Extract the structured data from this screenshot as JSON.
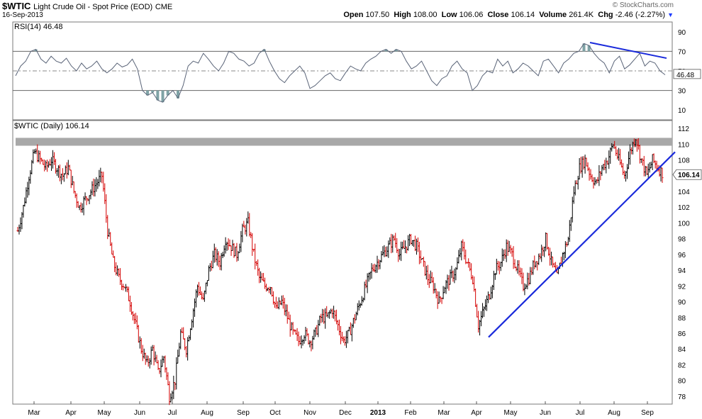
{
  "header": {
    "symbol": "$WTIC",
    "description": "Light Crude Oil - Spot Price (EOD)",
    "exchange": "CME",
    "date": "16-Sep-2013",
    "open_label": "Open",
    "open": "107.50",
    "high_label": "High",
    "high": "108.00",
    "low_label": "Low",
    "low": "106.06",
    "close_label": "Close",
    "close": "106.14",
    "volume_label": "Volume",
    "volume": "261.4K",
    "chg_label": "Chg",
    "chg": "-2.46 (-2.27%)",
    "brand": "© StockCharts.com"
  },
  "chart_data": [
    {
      "type": "line",
      "title": "RSI(14) 46.48",
      "indicator": "RSI(14)",
      "last_value": "46.48",
      "ylim": [
        0,
        100
      ],
      "yticks": [
        "90",
        "70",
        "50",
        "30",
        "10"
      ],
      "reference_lines": [
        70,
        50,
        30
      ],
      "grid": false,
      "series": [
        {
          "values": [
            45,
            55,
            60,
            70,
            72,
            62,
            58,
            65,
            60,
            58,
            63,
            55,
            50,
            58,
            52,
            55,
            60,
            52,
            48,
            52,
            58,
            54,
            56,
            62,
            52,
            30,
            25,
            28,
            20,
            18,
            25,
            30,
            22,
            35,
            55,
            60,
            58,
            68,
            62,
            55,
            50,
            58,
            70,
            68,
            62,
            60,
            55,
            58,
            68,
            72,
            60,
            50,
            42,
            38,
            45,
            50,
            55,
            48,
            32,
            35,
            40,
            45,
            48,
            42,
            40,
            48,
            55,
            52,
            50,
            58,
            62,
            65,
            70,
            72,
            68,
            72,
            70,
            60,
            52,
            55,
            60,
            50,
            40,
            35,
            42,
            45,
            55,
            60,
            52,
            48,
            30,
            35,
            45,
            50,
            48,
            62,
            55,
            60,
            48,
            52,
            58,
            55,
            50,
            45,
            60,
            62,
            55,
            48,
            58,
            62,
            68,
            70,
            78,
            76,
            68,
            62,
            58,
            48,
            60,
            65,
            52,
            56,
            62,
            68,
            55,
            60,
            58,
            50,
            46
          ]
        }
      ],
      "trendline_label": "divergence line",
      "trendline": {
        "from": {
          "x": "Jul 2013",
          "y": 79
        },
        "to": {
          "x": "Sep 2013",
          "y": 63
        }
      }
    },
    {
      "type": "line",
      "title": "$WTIC (Daily) 106.14",
      "series_name": "$WTIC (Daily)",
      "last_value": "106.14",
      "ylim": [
        77,
        113
      ],
      "yticks": [
        "112",
        "110",
        "108",
        "106",
        "104",
        "102",
        "100",
        "98",
        "96",
        "94",
        "92",
        "90",
        "88",
        "86",
        "84",
        "82",
        "80",
        "78"
      ],
      "xticks": [
        "Mar",
        "Apr",
        "May",
        "Jun",
        "Jul",
        "Aug",
        "Sep",
        "Oct",
        "Nov",
        "Dec",
        "2013",
        "Feb",
        "Mar",
        "Apr",
        "May",
        "Jun",
        "Jul",
        "Aug",
        "Sep"
      ],
      "resistance_band": [
        109.8,
        110.8
      ],
      "grid": false,
      "series": [
        {
          "values": [
            99,
            102,
            106,
            109,
            108,
            107,
            108,
            107,
            106,
            107,
            104,
            102,
            103,
            104,
            105,
            106,
            99,
            95,
            93,
            92,
            90,
            87,
            84,
            82,
            84,
            81,
            83,
            78,
            80,
            86,
            84,
            88,
            92,
            90,
            94,
            96,
            95,
            98,
            97,
            96,
            99,
            100,
            96,
            93,
            92,
            92,
            89,
            90,
            88,
            86,
            85,
            86,
            85,
            86,
            88,
            88,
            89,
            87,
            85,
            86,
            88,
            90,
            92,
            94,
            95,
            96,
            97,
            98,
            96,
            97,
            98,
            97,
            95,
            93,
            92,
            90,
            92,
            93,
            94,
            97,
            95,
            93,
            87,
            89,
            91,
            94,
            95,
            97,
            96,
            94,
            92,
            93,
            95,
            96,
            98,
            95,
            93,
            96,
            98,
            104,
            107,
            108,
            106,
            105,
            107,
            108,
            110,
            108,
            106,
            109,
            111,
            108,
            106,
            108,
            107,
            106.14
          ]
        }
      ],
      "trendline_label": "rising support line",
      "trendline": {
        "from": {
          "x": "Apr 2013",
          "y": 85.5
        },
        "to": {
          "x": "Sep 2013",
          "y": 109
        }
      }
    }
  ]
}
